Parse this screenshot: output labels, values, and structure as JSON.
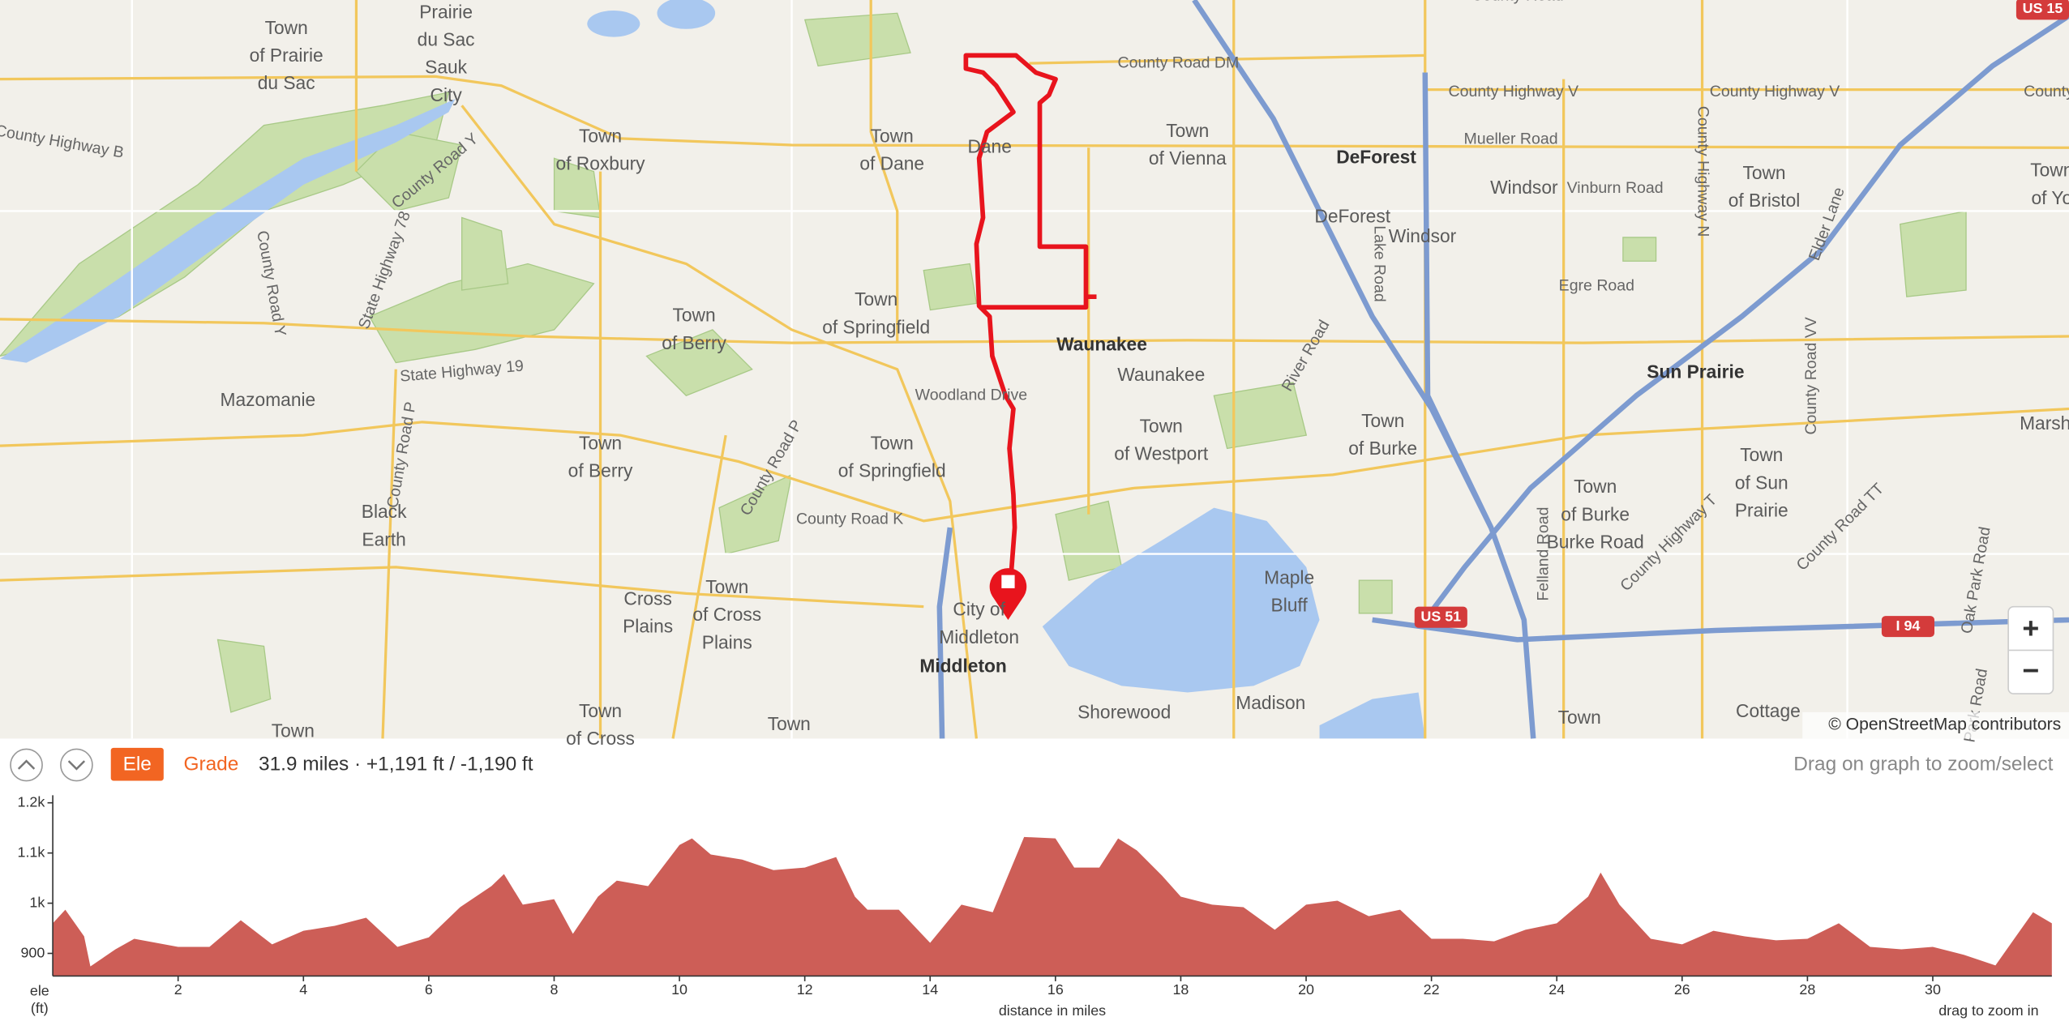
{
  "map": {
    "labels": [
      [
        "Town",
        "of Prairie",
        "du Sac"
      ],
      [
        "Prairie",
        "du Sac",
        "Sauk",
        "City"
      ],
      [
        "Town",
        "of Roxbury"
      ],
      [
        "Town",
        "of Dane"
      ],
      [
        "Dane"
      ],
      [
        "Town",
        "of Vienna"
      ],
      [
        "DeForest"
      ],
      [
        "DeForest"
      ],
      [
        "Windsor"
      ],
      [
        "Mueller Road"
      ],
      [
        "Windsor"
      ],
      [
        "Vinburn Road"
      ],
      [
        "Town",
        "of Bristol"
      ],
      [
        "Town",
        "of Yo"
      ],
      [
        "Egre Road"
      ],
      [
        "Sun Prairie"
      ],
      [
        "Town",
        "of Springfield"
      ],
      [
        "Town",
        "of Berry"
      ],
      [
        "Waunakee"
      ],
      [
        "Waunakee"
      ],
      [
        "Woodland Drive"
      ],
      [
        "Mazomanie"
      ],
      [
        "Town",
        "of Westport"
      ],
      [
        "Town",
        "of Burke"
      ],
      [
        "Town",
        "of Springfield"
      ],
      [
        "Town",
        "of Berry"
      ],
      [
        "Black",
        "Earth"
      ],
      [
        "County Road K"
      ],
      [
        "Town",
        "of Burke",
        "Burke Road"
      ],
      [
        "Town",
        "of Sun",
        "Prairie"
      ],
      [
        "Marsh"
      ],
      [
        "Maple",
        "Bluff"
      ],
      [
        "Cross",
        "Plains"
      ],
      [
        "Town",
        "of Cross",
        "Plains"
      ],
      [
        "City of",
        "Middleton"
      ],
      [
        "Middleton"
      ],
      [
        "Shorewood"
      ],
      [
        "Madison"
      ],
      [
        "County Road DM"
      ],
      [
        "County Highway V"
      ],
      [
        "County Highway V"
      ],
      [
        "County Hi"
      ],
      [
        "County Highway B"
      ],
      [
        "County Road Y"
      ],
      [
        "State Highway 78"
      ],
      [
        "County Road Y"
      ],
      [
        "State Highway 19"
      ],
      [
        "County Road P"
      ],
      [
        "County Road P"
      ],
      [
        "River Road"
      ],
      [
        "Lake Road"
      ],
      [
        "County Highway N"
      ],
      [
        "Elder Lane"
      ],
      [
        "County Road VV"
      ],
      [
        "County Highway T"
      ],
      [
        "County Road TT"
      ],
      [
        "Oak Park Road"
      ],
      [
        "Park Road"
      ],
      [
        "Felland Road"
      ],
      [
        "Town",
        "of Cross"
      ],
      [
        "Town"
      ],
      [
        "Town"
      ],
      [
        "Cottage"
      ],
      [
        "Town"
      ],
      [
        "County Road"
      ],
      [
        "US 51"
      ],
      [
        "I 94"
      ],
      [
        "US 15"
      ]
    ],
    "attribution": "© OpenStreetMap contributors",
    "zoom_in": "+",
    "zoom_out": "−"
  },
  "toolbar": {
    "ele": "Ele",
    "grade": "Grade",
    "summary": "31.9 miles · +1,191 ft / -1,190 ft",
    "hint": "Drag on graph to zoom/select"
  },
  "elevation_chart": {
    "type": "area",
    "x": [
      0,
      0.2,
      0.5,
      0.6,
      1.0,
      1.3,
      2.0,
      2.5,
      3.0,
      3.5,
      4.0,
      4.5,
      5.0,
      5.5,
      6.0,
      6.5,
      7.0,
      7.2,
      7.5,
      8.0,
      8.3,
      8.7,
      9.0,
      9.5,
      10.0,
      10.2,
      10.5,
      11.0,
      11.5,
      12.0,
      12.5,
      12.8,
      13.0,
      13.5,
      14.0,
      14.5,
      15.0,
      15.5,
      16.0,
      16.3,
      16.7,
      17.0,
      17.3,
      17.7,
      18.0,
      18.5,
      19.0,
      19.5,
      20.0,
      20.5,
      21.0,
      21.5,
      22.0,
      22.5,
      23.0,
      23.5,
      24.0,
      24.5,
      24.7,
      25.0,
      25.5,
      26.0,
      26.5,
      27.0,
      27.5,
      28.0,
      28.5,
      29.0,
      29.5,
      30.0,
      30.5,
      31.0,
      31.3,
      31.6,
      31.9
    ],
    "values": [
      960,
      987,
      934,
      874,
      908,
      929,
      913,
      913,
      966,
      918,
      945,
      955,
      971,
      913,
      932,
      992,
      1034,
      1058,
      997,
      1008,
      939,
      1013,
      1045,
      1034,
      1116,
      1129,
      1097,
      1087,
      1066,
      1071,
      1092,
      1013,
      987,
      987,
      921,
      997,
      982,
      1132,
      1129,
      1071,
      1071,
      1129,
      1105,
      1055,
      1013,
      997,
      992,
      947,
      997,
      1005,
      974,
      987,
      929,
      929,
      924,
      947,
      960,
      1013,
      1061,
      997,
      929,
      918,
      945,
      934,
      926,
      929,
      960,
      913,
      908,
      913,
      897,
      876,
      929,
      982,
      960
    ],
    "color": "#cd5e57",
    "xlim": [
      0,
      31.9
    ],
    "ylim": [
      855,
      1215
    ],
    "xticks": [
      2,
      4,
      6,
      8,
      10,
      12,
      14,
      16,
      18,
      20,
      22,
      24,
      26,
      28,
      30
    ],
    "yticks": [
      900,
      {
        "value": 1000,
        "label": "1k"
      },
      {
        "value": 1100,
        "label": "1.1k"
      },
      {
        "value": 1200,
        "label": "1.2k"
      }
    ],
    "y_label": [
      "ele",
      "(ft)"
    ],
    "x_label": "distance in miles",
    "hint": "drag to zoom in"
  }
}
